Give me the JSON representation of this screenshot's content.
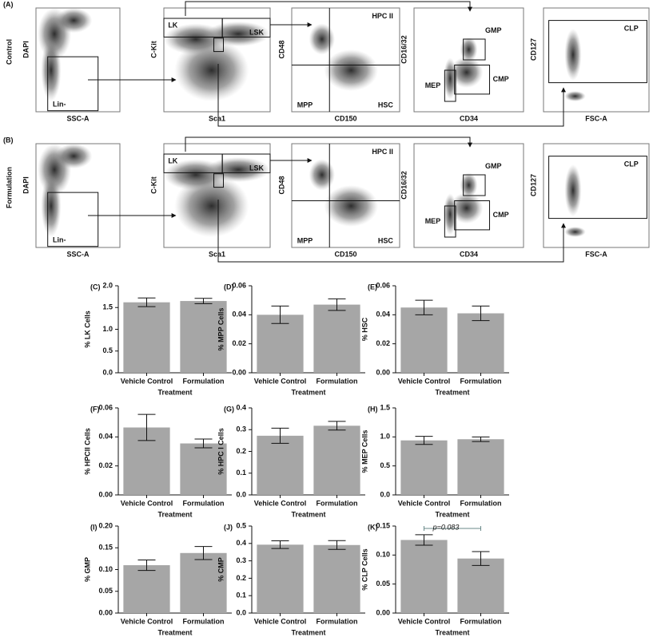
{
  "flow": {
    "rows": [
      {
        "label": "(A)",
        "name": "Control"
      },
      {
        "label": "(B)",
        "name": "Formulation"
      }
    ],
    "panels": [
      {
        "y_label": "DAPI",
        "x_label": "SSC-A",
        "gates": [
          "Lin-"
        ]
      },
      {
        "y_label": "C-Kit",
        "x_label": "Sca1",
        "gates": [
          "LK",
          "LSK"
        ]
      },
      {
        "y_label": "CD48",
        "x_label": "CD150",
        "gates": [
          "HPC II",
          "MPP",
          "HSC"
        ]
      },
      {
        "y_label": "CD16/32",
        "x_label": "CD34",
        "gates": [
          "GMP",
          "MEP",
          "CMP"
        ]
      },
      {
        "y_label": "CD127",
        "x_label": "FSC-A",
        "gates": [
          "CLP"
        ]
      }
    ]
  },
  "chart_data": [
    {
      "type": "bar",
      "panel": "(C)",
      "y_label": "% LK Cells",
      "x_label": "Treatment",
      "categories": [
        "Vehicle Control",
        "Formulation"
      ],
      "values": [
        1.62,
        1.65
      ],
      "errors": [
        0.1,
        0.06
      ],
      "color": "#a6a6a6",
      "ylim": [
        0,
        2
      ],
      "yticks": [
        {
          "value": 0,
          "label": "0.0"
        },
        0.5,
        {
          "value": 1,
          "label": "1.0"
        },
        1.5,
        {
          "value": 2,
          "label": "2.0"
        }
      ]
    },
    {
      "type": "bar",
      "panel": "(D)",
      "y_label": "% MPP Cells",
      "x_label": "Treatment",
      "categories": [
        "Vehicle Control",
        "Formulation"
      ],
      "values": [
        0.04,
        0.047
      ],
      "errors": [
        0.006,
        0.004
      ],
      "color": "#a6a6a6",
      "ylim": [
        0,
        0.06
      ],
      "yticks": [
        {
          "value": 0,
          "label": "0.00"
        },
        0.02,
        0.04,
        0.06
      ]
    },
    {
      "type": "bar",
      "panel": "(E)",
      "y_label": "% HSC",
      "x_label": "Treatment",
      "categories": [
        "Vehicle Control",
        "Formulation"
      ],
      "values": [
        0.045,
        0.041
      ],
      "errors": [
        0.005,
        0.005
      ],
      "color": "#a6a6a6",
      "ylim": [
        0,
        0.06
      ],
      "yticks": [
        {
          "value": 0,
          "label": "0.00"
        },
        0.02,
        0.04,
        0.06
      ]
    },
    {
      "type": "bar",
      "panel": "(F)",
      "y_label": "% HPCII Cells",
      "x_label": "Treatment",
      "categories": [
        "Vehicle Control",
        "Formulation"
      ],
      "values": [
        0.0465,
        0.0355
      ],
      "errors": [
        0.009,
        0.003
      ],
      "color": "#a6a6a6",
      "ylim": [
        0,
        0.06
      ],
      "yticks": [
        {
          "value": 0,
          "label": "0.00"
        },
        0.02,
        0.04,
        0.06
      ]
    },
    {
      "type": "bar",
      "panel": "(G)",
      "y_label": "% HPC I Cells",
      "x_label": "Treatment",
      "categories": [
        "Vehicle Control",
        "Formulation"
      ],
      "values": [
        0.272,
        0.318
      ],
      "errors": [
        0.035,
        0.02
      ],
      "color": "#a6a6a6",
      "ylim": [
        0,
        0.4
      ],
      "yticks": [
        {
          "value": 0,
          "label": "0.0"
        },
        0.1,
        0.2,
        0.3,
        0.4
      ]
    },
    {
      "type": "bar",
      "panel": "(H)",
      "y_label": "% MEP Cells",
      "x_label": "Treatment",
      "categories": [
        "Vehicle Control",
        "Formulation"
      ],
      "values": [
        0.94,
        0.96
      ],
      "errors": [
        0.07,
        0.04
      ],
      "color": "#a6a6a6",
      "ylim": [
        0,
        1.5
      ],
      "yticks": [
        {
          "value": 0,
          "label": "0.0"
        },
        0.5,
        {
          "value": 1,
          "label": "1.0"
        },
        1.5
      ]
    },
    {
      "type": "bar",
      "panel": "(I)",
      "y_label": "% GMP",
      "x_label": "Treatment",
      "categories": [
        "Vehicle Control",
        "Formulation"
      ],
      "values": [
        0.11,
        0.138
      ],
      "errors": [
        0.012,
        0.015
      ],
      "color": "#a6a6a6",
      "ylim": [
        0,
        0.2
      ],
      "yticks": [
        {
          "value": 0,
          "label": "0.00"
        },
        0.05,
        {
          "value": 0.1,
          "label": "0.10"
        },
        0.15,
        {
          "value": 0.2,
          "label": "0.20"
        }
      ]
    },
    {
      "type": "bar",
      "panel": "(J)",
      "y_label": "% CMP",
      "x_label": "Treatment",
      "categories": [
        "Vehicle Control",
        "Formulation"
      ],
      "values": [
        0.393,
        0.391
      ],
      "errors": [
        0.022,
        0.025
      ],
      "color": "#a6a6a6",
      "ylim": [
        0,
        0.5
      ],
      "yticks": [
        {
          "value": 0,
          "label": "0.0"
        },
        0.1,
        0.2,
        0.3,
        0.4,
        0.5
      ]
    },
    {
      "type": "bar",
      "panel": "(K)",
      "y_label": "% CLP Cells",
      "x_label": "Treatment",
      "categories": [
        "Vehicle Control",
        "Formulation"
      ],
      "values": [
        0.126,
        0.094
      ],
      "errors": [
        0.009,
        0.012
      ],
      "color": "#a6a6a6",
      "ylim": [
        0,
        0.15
      ],
      "yticks": [
        {
          "value": 0,
          "label": "0.00"
        },
        0.05,
        {
          "value": 0.1,
          "label": "0.10"
        },
        0.15
      ],
      "annotation": "p=0.083"
    }
  ]
}
